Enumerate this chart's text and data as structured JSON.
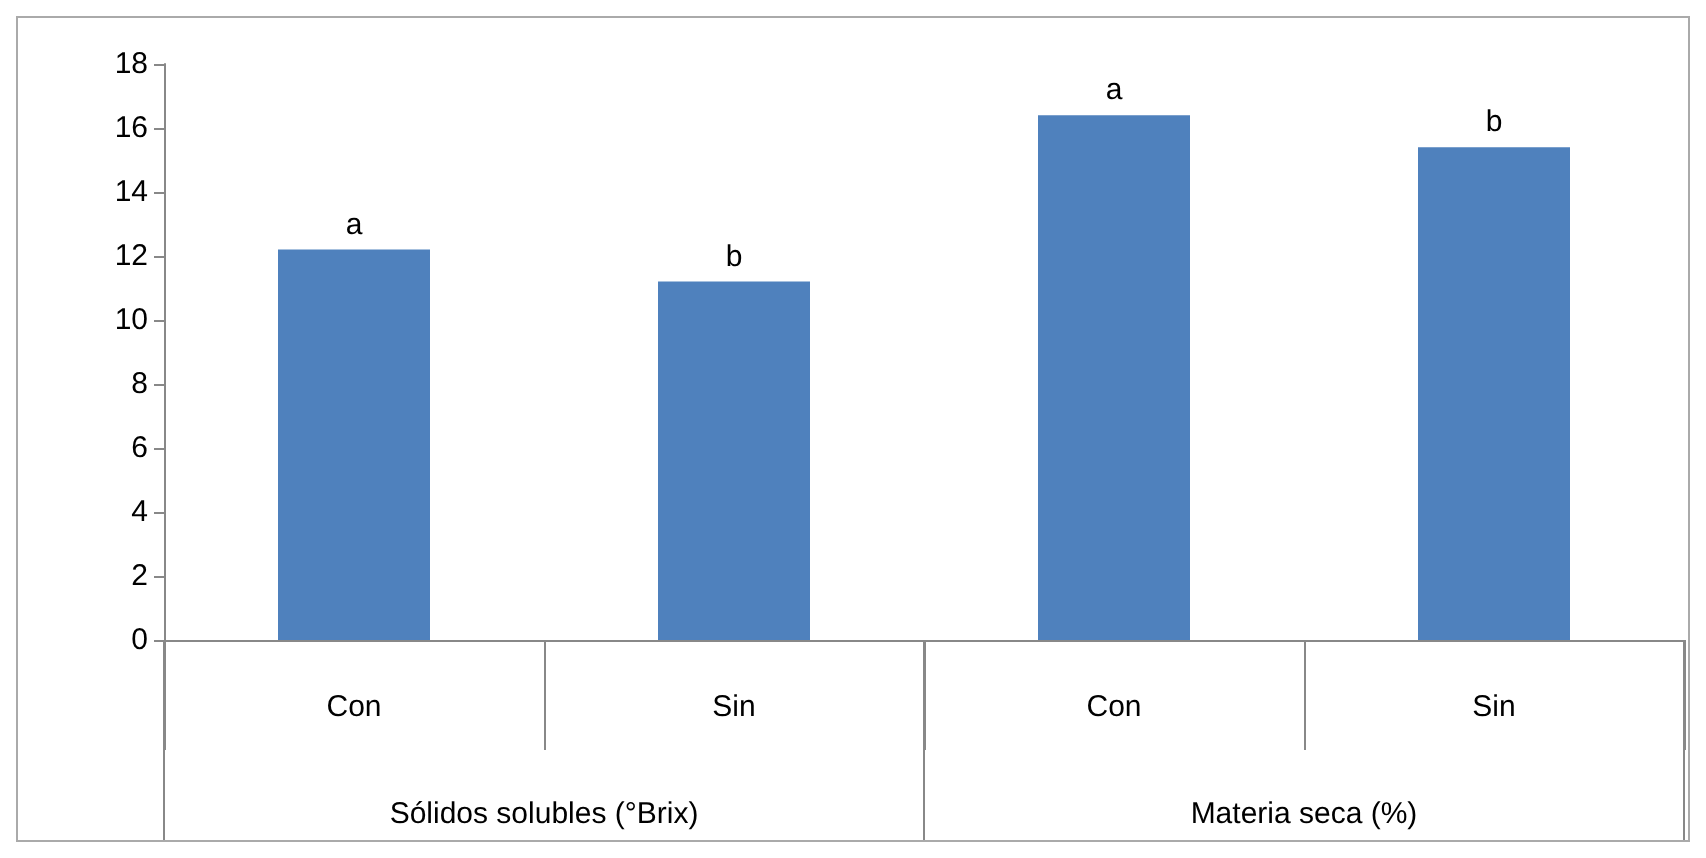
{
  "chart_data": {
    "type": "bar",
    "categories": [
      "Con",
      "Sin",
      "Con",
      "Sin"
    ],
    "values": [
      12.2,
      11.2,
      16.4,
      15.4
    ],
    "value_labels": [
      "a",
      "b",
      "a",
      "b"
    ],
    "color": "#4f81bd",
    "ylim": [
      0,
      18
    ],
    "yticks": [
      0,
      2,
      4,
      6,
      8,
      10,
      12,
      14,
      16,
      18
    ],
    "grid": false,
    "annotations": [
      "Sólidos solubles (°Brix)",
      "Materia seca (%)"
    ]
  }
}
